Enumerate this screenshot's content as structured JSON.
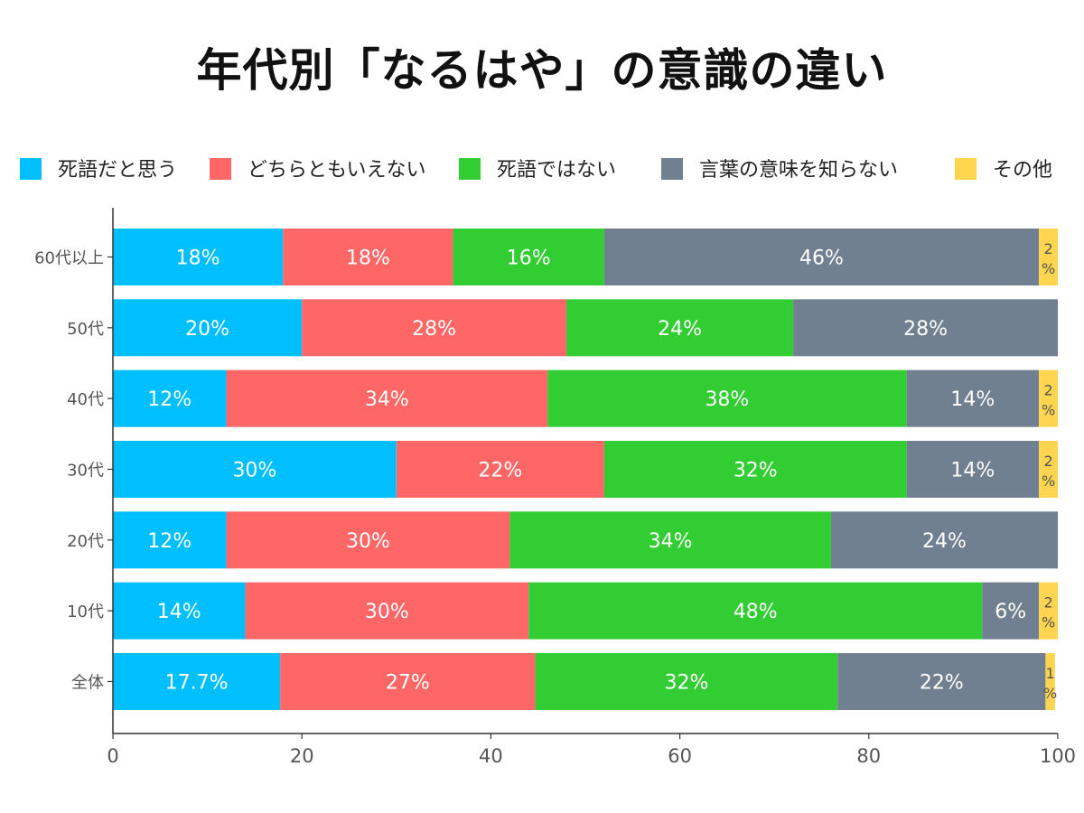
{
  "chart_data": {
    "type": "bar",
    "orientation": "horizontal",
    "stacked": true,
    "title": "年代別「なるはや」の意識の違い",
    "categories": [
      "60代以上",
      "50代",
      "40代",
      "30代",
      "20代",
      "10代",
      "全体"
    ],
    "series": [
      {
        "name": "死語だと思う",
        "color": "#00BFFF",
        "values": [
          18,
          20,
          12,
          30,
          12,
          14,
          17.7
        ],
        "labels": [
          "18%",
          "20%",
          "12%",
          "30%",
          "12%",
          "14%",
          "17.7%"
        ]
      },
      {
        "name": "どちらともいえない",
        "color": "#FF6666",
        "values": [
          18,
          28,
          34,
          22,
          30,
          30,
          27
        ],
        "labels": [
          "18%",
          "28%",
          "34%",
          "22%",
          "30%",
          "30%",
          "27%"
        ]
      },
      {
        "name": "死語ではない",
        "color": "#32CD32",
        "values": [
          16,
          24,
          38,
          32,
          34,
          48,
          32
        ],
        "labels": [
          "16%",
          "24%",
          "38%",
          "32%",
          "34%",
          "48%",
          "32%"
        ]
      },
      {
        "name": "言葉の意味を知らない",
        "color": "#708090",
        "values": [
          46,
          28,
          14,
          14,
          24,
          6,
          22
        ],
        "labels": [
          "46%",
          "28%",
          "14%",
          "14%",
          "24%",
          "6%",
          "22%"
        ]
      },
      {
        "name": "その他",
        "color": "#FFD54F",
        "values": [
          2,
          0,
          2,
          2,
          0,
          2,
          1
        ],
        "labels": [
          "2%",
          "",
          "2%",
          "2%",
          "",
          "2%",
          "1%"
        ]
      }
    ],
    "xlim": [
      0,
      100
    ],
    "xticks": [
      0,
      20,
      40,
      60,
      80,
      100
    ],
    "xlabel": "",
    "ylabel": "",
    "grid": false,
    "legend_position": "top"
  }
}
